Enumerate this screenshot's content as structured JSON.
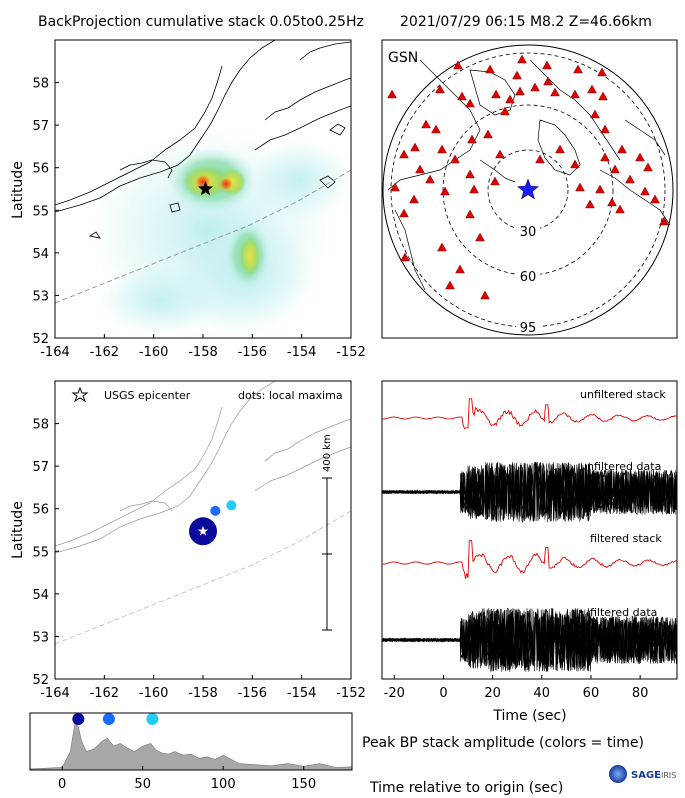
{
  "header": {
    "left": "BackProjection cumulative stack 0.05to0.25Hz",
    "right": "2021/07/29 06:15   M8.2  Z=46.66km"
  },
  "chart_data": [
    {
      "type": "heatmap",
      "xlabel": "",
      "ylabel": "Latitude",
      "xlim": [
        -164,
        -152
      ],
      "ylim": [
        52,
        59
      ],
      "xticks": [
        -164,
        -162,
        -160,
        -158,
        -156,
        -154,
        -152
      ],
      "yticks": [
        52,
        53,
        54,
        55,
        56,
        57,
        58
      ],
      "epicenter": {
        "lon": -157.9,
        "lat": 55.5
      },
      "colors": {
        "low": "#bfeeee",
        "mid": "#7fd67f",
        "high": "#f0e040",
        "peak": "#e03020"
      }
    },
    {
      "type": "scatter",
      "title": "GSN",
      "ring_labels": [
        "30",
        "60",
        "95"
      ],
      "station_color": "#e00000",
      "epicenter_color": "#1a1aff"
    },
    {
      "type": "scatter",
      "xlabel": "",
      "ylabel": "Latitude",
      "xlim": [
        -164,
        -152
      ],
      "ylim": [
        52,
        59
      ],
      "xticks": [
        -164,
        -162,
        -160,
        -158,
        -156,
        -154,
        -152
      ],
      "yticks": [
        52,
        53,
        54,
        55,
        56,
        57,
        58
      ],
      "legend_epicenter": "USGS epicenter",
      "legend_dots": "dots: local maxima",
      "scale_label": "400 km",
      "epicenter": {
        "lon": -158.0,
        "lat": 55.47
      },
      "points": [
        {
          "lon": -158.0,
          "lat": 55.47,
          "color": "#0a0a9a",
          "size": "large"
        },
        {
          "lon": -157.5,
          "lat": 55.95,
          "color": "#1a6aff",
          "size": "small"
        },
        {
          "lon": -156.85,
          "lat": 56.08,
          "color": "#22ccff",
          "size": "small"
        }
      ]
    },
    {
      "type": "line",
      "xlabel": "Time (sec)",
      "xlim": [
        -25,
        95
      ],
      "xticks": [
        -20,
        0,
        20,
        40,
        60,
        80
      ],
      "series": [
        {
          "name": "unfiltered stack",
          "color": "#e00000"
        },
        {
          "name": "unfiltered data",
          "color": "#000000"
        },
        {
          "name": "filtered stack",
          "color": "#e00000"
        },
        {
          "name": "filtered data",
          "color": "#000000"
        }
      ]
    },
    {
      "type": "area",
      "title": "Peak BP stack amplitude (colors = time)",
      "xlabel": "Time relative to origin (sec)",
      "xlim": [
        -20,
        180
      ],
      "xticks": [
        0,
        50,
        100,
        150
      ],
      "fill_color": "#a8a8a8",
      "x": [
        -20,
        0,
        5,
        8,
        10,
        12,
        15,
        20,
        25,
        28,
        32,
        36,
        40,
        45,
        50,
        55,
        58,
        62,
        66,
        70,
        75,
        80,
        85,
        90,
        95,
        100,
        110,
        120,
        130,
        140,
        150,
        160,
        170,
        180
      ],
      "y": [
        0.02,
        0.05,
        0.35,
        0.9,
        0.82,
        0.55,
        0.35,
        0.4,
        0.55,
        0.6,
        0.45,
        0.5,
        0.42,
        0.35,
        0.45,
        0.5,
        0.38,
        0.32,
        0.3,
        0.35,
        0.28,
        0.3,
        0.22,
        0.25,
        0.2,
        0.28,
        0.12,
        0.1,
        0.08,
        0.12,
        0.07,
        0.12,
        0.05,
        0.06
      ],
      "markers": [
        {
          "x": 10,
          "color": "#0a0a9a"
        },
        {
          "x": 29,
          "color": "#1a6aff"
        },
        {
          "x": 56,
          "color": "#22ccff"
        }
      ]
    }
  ],
  "logo": {
    "text": "SAGE",
    "suffix": "IRIS"
  }
}
